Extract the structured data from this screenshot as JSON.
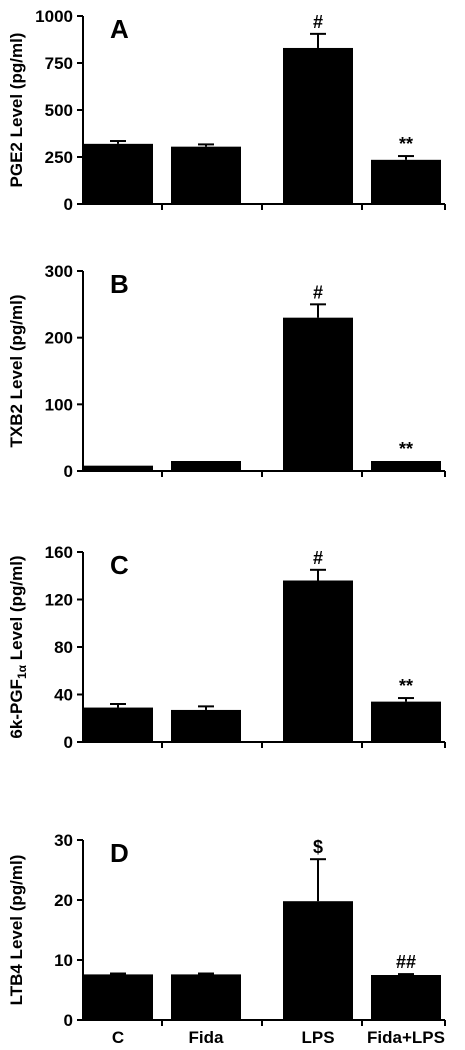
{
  "chart_data": [
    {
      "type": "bar",
      "panel": "A",
      "ylabel": "PGE2 Level (pg/ml)",
      "ylim": [
        0,
        1000
      ],
      "yticks": [
        0,
        250,
        500,
        750,
        1000
      ],
      "categories": [
        "C",
        "Fida",
        "LPS",
        "Fida+LPS"
      ],
      "values": [
        320,
        305,
        830,
        235
      ],
      "errors": [
        15,
        12,
        75,
        20
      ],
      "annotations": [
        "",
        "",
        "#",
        "**"
      ]
    },
    {
      "type": "bar",
      "panel": "B",
      "ylabel": "TXB2 Level (pg/ml)",
      "ylim": [
        0,
        300
      ],
      "yticks": [
        0,
        100,
        200,
        300
      ],
      "categories": [
        "C",
        "Fida",
        "LPS",
        "Fida+LPS"
      ],
      "values": [
        8,
        15,
        230,
        15
      ],
      "errors": [
        0,
        0,
        20,
        0
      ],
      "annotations": [
        "",
        "",
        "#",
        "**"
      ]
    },
    {
      "type": "bar",
      "panel": "C",
      "ylabel_main": "6k-PGF",
      "ylabel_sub": "1α",
      "ylabel_tail": " Level (pg/ml)",
      "ylim": [
        0,
        160
      ],
      "yticks": [
        0,
        40,
        80,
        120,
        160
      ],
      "categories": [
        "C",
        "Fida",
        "LPS",
        "Fida+LPS"
      ],
      "values": [
        29,
        27,
        136,
        34
      ],
      "errors": [
        3,
        3,
        9,
        3
      ],
      "annotations": [
        "",
        "",
        "#",
        "**"
      ]
    },
    {
      "type": "bar",
      "panel": "D",
      "ylabel": "LTB4  Level (pg/ml)",
      "ylim": [
        0,
        30
      ],
      "yticks": [
        0,
        10,
        20,
        30
      ],
      "categories": [
        "C",
        "Fida",
        "LPS",
        "Fida+LPS"
      ],
      "values": [
        7.6,
        7.6,
        19.8,
        7.5
      ],
      "errors": [
        0.15,
        0.15,
        7.0,
        0.15
      ],
      "annotations": [
        "",
        "",
        "$",
        "##"
      ]
    }
  ],
  "x_categories": [
    "C",
    "Fida",
    "LPS",
    "Fida+LPS"
  ]
}
